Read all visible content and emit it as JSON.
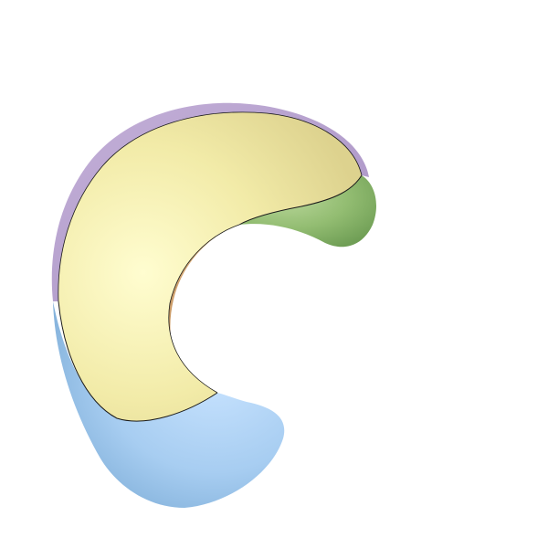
{
  "scene": {
    "subject": "c-shaped-surface-render",
    "colors": {
      "background": "#ffffff",
      "lavender_rim": "#c4b0d8",
      "lavender_rim_shadow": "#a892c4",
      "yellow_face_light": "#fffdd0",
      "yellow_face": "#f2eba8",
      "yellow_face_shadow": "#ddd28e",
      "green_tip_light": "#b9d79a",
      "green_tip": "#93bd72",
      "green_tip_shadow": "#6f9e55",
      "orange_inner_light": "#f3d7a6",
      "orange_inner": "#e2b985",
      "orange_inner_shadow": "#c99a67",
      "blue_base_light": "#c8e3ff",
      "blue_base": "#a7cdf1",
      "blue_base_shadow": "#7faed8",
      "seam_line": "#1a1a1a"
    }
  }
}
